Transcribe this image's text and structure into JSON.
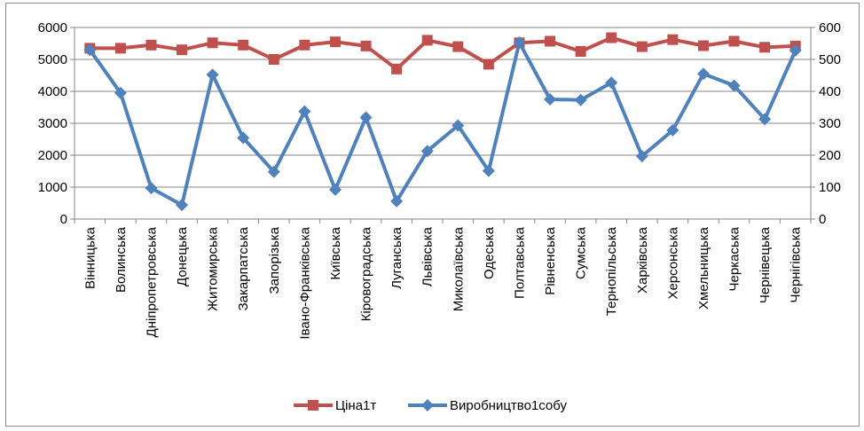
{
  "chart_data": {
    "type": "line",
    "title": "",
    "categories": [
      "Вінницька",
      "Волинська",
      "Дніпропетровська",
      "Донецька",
      "Житомирська",
      "Закарпатська",
      "Запорізька",
      "Івано-Франківська",
      "Київська",
      "Кіровоградська",
      "Луганська",
      "Львівська",
      "Миколаївська",
      "Одеська",
      "Полтавська",
      "Рівненська",
      "Сумська",
      "Тернопільська",
      "Харківська",
      "Херсонська",
      "Хмельницька",
      "Черкаська",
      "Чернівецька",
      "Чернігівська"
    ],
    "series": [
      {
        "name": "Ціна1т",
        "axis": "left",
        "color": "#c0504d",
        "marker": "square",
        "values": [
          5350,
          5350,
          5450,
          5300,
          5520,
          5450,
          5000,
          5450,
          5550,
          5420,
          4700,
          5600,
          5400,
          4850,
          5520,
          5570,
          5250,
          5680,
          5400,
          5620,
          5430,
          5570,
          5380,
          5420
        ]
      },
      {
        "name": "Виробництво1собу",
        "axis": "right",
        "color": "#4f81bd",
        "marker": "diamond",
        "values": [
          530,
          395,
          97,
          44,
          452,
          254,
          148,
          337,
          92,
          318,
          56,
          213,
          293,
          151,
          553,
          375,
          373,
          427,
          197,
          278,
          455,
          418,
          313,
          528
        ]
      }
    ],
    "y_left": {
      "min": 0,
      "max": 6000,
      "ticks": [
        "0",
        "1000",
        "2000",
        "3000",
        "4000",
        "5000",
        "6000"
      ]
    },
    "y_right": {
      "min": 0,
      "max": 600,
      "ticks": [
        "0",
        "100",
        "200",
        "300",
        "400",
        "500",
        "600"
      ]
    },
    "grid": true,
    "legend": "bottom"
  }
}
